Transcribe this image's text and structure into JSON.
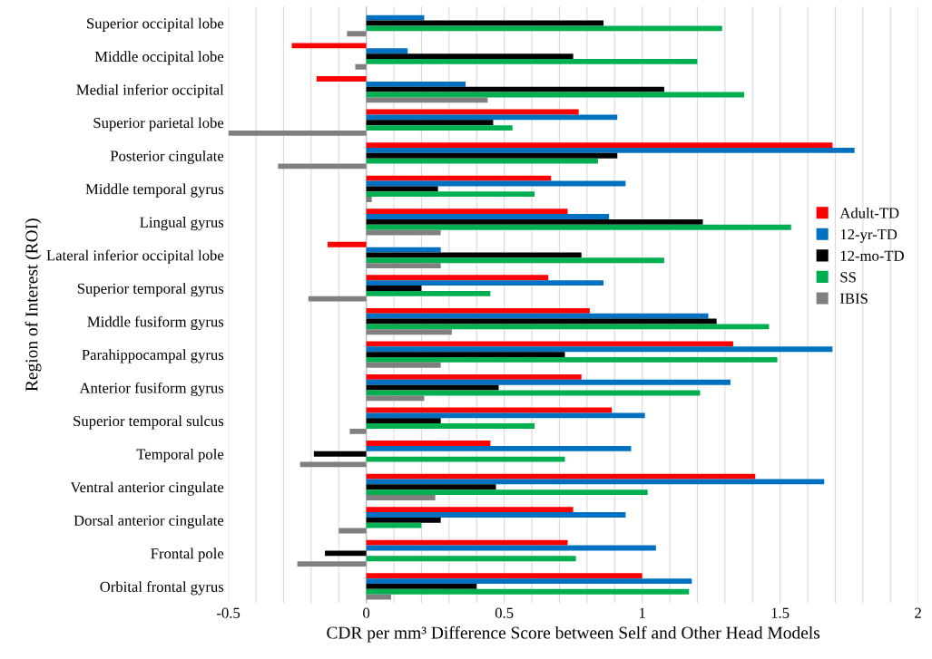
{
  "chart_data": {
    "type": "bar",
    "orientation": "horizontal",
    "xlabel": "CDR per mm³ Difference Score between Self and Other Head Models",
    "ylabel": "Region of Interest (ROI)",
    "categories": [
      "Superior occipital lobe",
      "Middle occipital lobe",
      "Medial inferior occipital",
      "Superior parietal lobe",
      "Posterior cingulate",
      "Middle temporal gyrus",
      "Lingual gyrus",
      "Lateral inferior occipital lobe",
      "Superior temporal gyrus",
      "Middle fusiform gyrus",
      "Parahippocampal gyrus",
      "Anterior fusiform gyrus",
      "Superior temporal sulcus",
      "Temporal pole",
      "Ventral anterior cingulate",
      "Dorsal anterior cingulate",
      "Frontal pole",
      "Orbital frontal gyrus"
    ],
    "series": [
      {
        "name": "Adult-TD",
        "color": "#ff0000",
        "values": [
          null,
          -0.27,
          -0.18,
          0.77,
          1.69,
          0.67,
          0.73,
          -0.14,
          0.66,
          0.81,
          1.33,
          0.78,
          0.89,
          0.45,
          1.41,
          0.75,
          0.73,
          1.0
        ]
      },
      {
        "name": "12-yr-TD",
        "color": "#0070c0",
        "values": [
          0.21,
          0.15,
          0.36,
          0.91,
          1.77,
          0.94,
          0.88,
          0.27,
          0.86,
          1.24,
          1.69,
          1.32,
          1.01,
          0.96,
          1.66,
          0.94,
          1.05,
          1.18
        ]
      },
      {
        "name": "12-mo-TD",
        "color": "#000000",
        "values": [
          0.86,
          0.75,
          1.08,
          0.46,
          0.91,
          0.26,
          1.22,
          0.78,
          0.2,
          1.27,
          0.72,
          0.48,
          0.27,
          -0.19,
          0.47,
          0.27,
          -0.15,
          0.4
        ]
      },
      {
        "name": "SS",
        "color": "#00b050",
        "values": [
          1.29,
          1.2,
          1.37,
          0.53,
          0.84,
          0.61,
          1.54,
          1.08,
          0.45,
          1.46,
          1.49,
          1.21,
          0.61,
          0.72,
          1.02,
          0.2,
          0.76,
          1.17
        ]
      },
      {
        "name": "IBIS",
        "color": "#808080",
        "values": [
          -0.07,
          -0.04,
          0.44,
          -0.5,
          -0.32,
          0.02,
          0.27,
          0.27,
          -0.21,
          0.31,
          0.27,
          0.21,
          -0.06,
          -0.24,
          0.25,
          -0.1,
          -0.25,
          0.09
        ]
      }
    ],
    "xlim": [
      -0.5,
      2
    ],
    "xticks": [
      -0.5,
      {
        "value": -0.4,
        "label": null
      },
      {
        "value": -0.3,
        "label": null
      },
      {
        "value": -0.2,
        "label": null
      },
      {
        "value": -0.1,
        "label": null
      },
      0,
      {
        "value": 0.1,
        "label": null
      },
      {
        "value": 0.2,
        "label": null
      },
      {
        "value": 0.3,
        "label": null
      },
      {
        "value": 0.4,
        "label": null
      },
      0.5,
      {
        "value": 0.6,
        "label": null
      },
      {
        "value": 0.7,
        "label": null
      },
      {
        "value": 0.8,
        "label": null
      },
      {
        "value": 0.9,
        "label": null
      },
      1,
      {
        "value": 1.1,
        "label": null
      },
      {
        "value": 1.2,
        "label": null
      },
      {
        "value": 1.3,
        "label": null
      },
      {
        "value": 1.4,
        "label": null
      },
      1.5,
      {
        "value": 1.6,
        "label": null
      },
      {
        "value": 1.7,
        "label": null
      },
      {
        "value": 1.8,
        "label": null
      },
      {
        "value": 1.9,
        "label": null
      },
      2
    ],
    "grid": "x",
    "legend": "right"
  }
}
